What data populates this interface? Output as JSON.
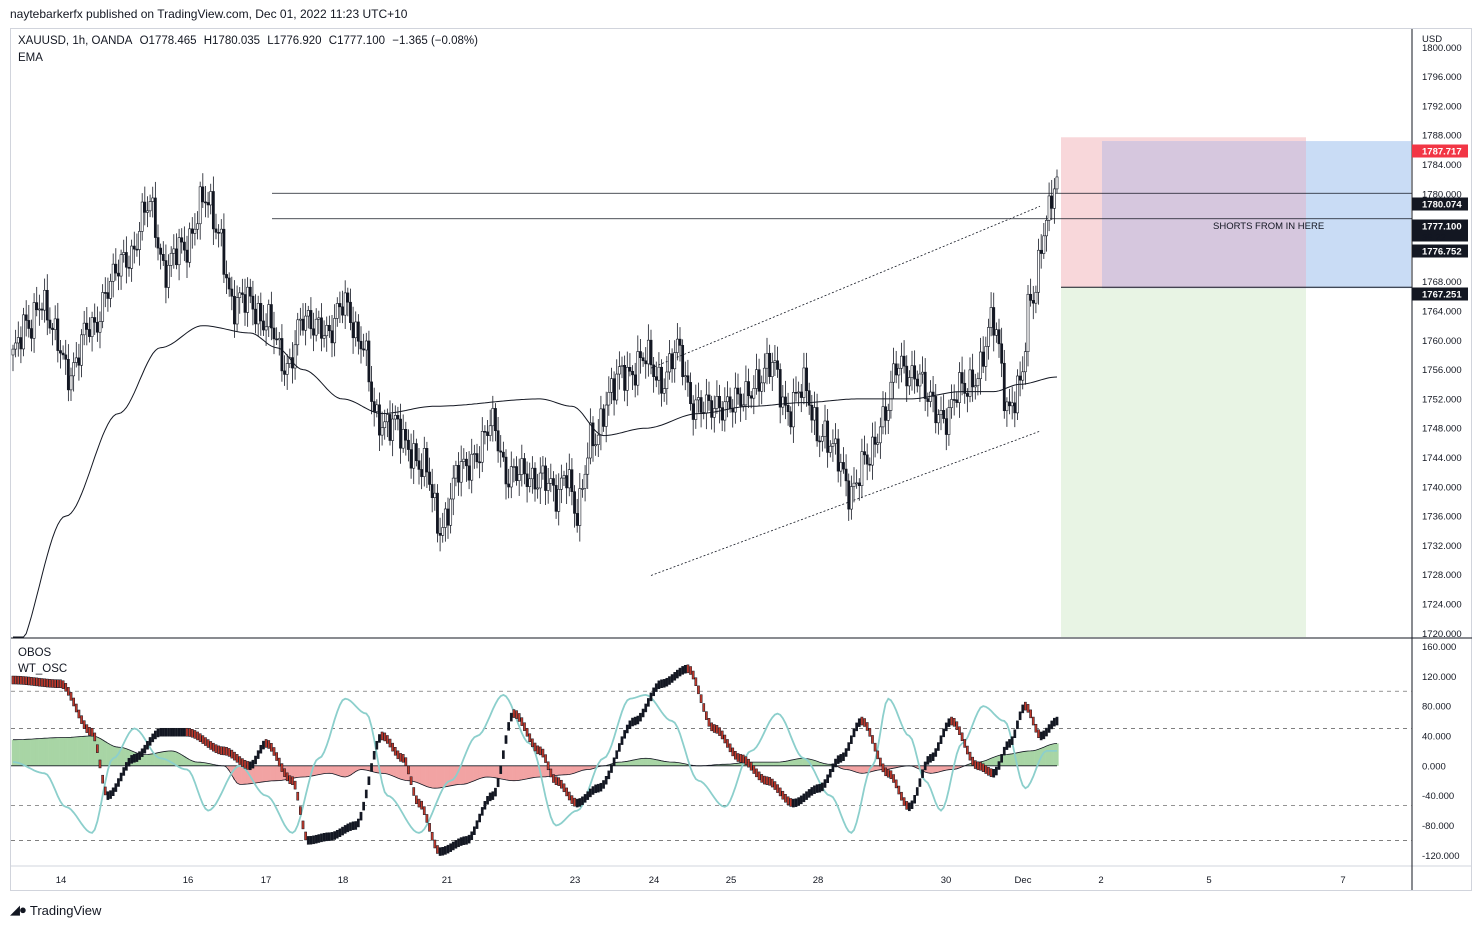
{
  "header": {
    "publisher_text": "naytebarkerfx published on TradingView.com, Dec 01, 2022 11:23 UTC+10"
  },
  "legend": {
    "symbol": "XAUUSD, 1h, OANDA",
    "open": "O1778.465",
    "high": "H1780.035",
    "low": "L1776.920",
    "close": "C1777.100",
    "change": "−1.365 (−0.08%)",
    "indicator": "EMA",
    "osc_title": "OBOS",
    "osc_name": "WT_OSC"
  },
  "footer": {
    "brand": "TradingView"
  },
  "annotation": {
    "text": "SHORTS FROM IN HERE"
  },
  "colors": {
    "candle": "#131722",
    "stop_zone": "#f8d7da",
    "profit_zone": "#e8f4e4",
    "short_box": "#c9dcf5",
    "overlap": "#d6c7de",
    "wt1": "#131722",
    "wt2": "#8ccfcc",
    "osc_green": "#a8d5a5",
    "osc_red": "#f2a3a3",
    "tag_red": "#f23645",
    "tag_black": "#131722"
  },
  "chart_data": {
    "type": "candlestick",
    "symbol": "XAUUSD",
    "timeframe": "1h",
    "x_tick_labels": [
      "14",
      "16",
      "17",
      "18",
      "21",
      "23",
      "24",
      "25",
      "28",
      "30",
      "Dec",
      "2",
      "5",
      "7"
    ],
    "y_unit_label": "USD",
    "y_ticks": [
      1800,
      1796,
      1792,
      1788,
      1784,
      1780,
      1776,
      1772,
      1768,
      1764,
      1760,
      1756,
      1752,
      1748,
      1744,
      1740,
      1736,
      1732,
      1728,
      1724,
      1720
    ],
    "ylim": [
      1719.5,
      1802.5
    ],
    "price_tags": [
      {
        "value": "1787.717",
        "color": "#f23645"
      },
      {
        "value": "1780.074",
        "color": "#131722"
      },
      {
        "value": "1777.100",
        "sub": "36:22",
        "color": "#131722"
      },
      {
        "value": "1776.752",
        "color": "#131722"
      },
      {
        "value": "1767.251",
        "color": "#131722"
      }
    ],
    "horizontal_levels": [
      1780.074,
      1776.6
    ],
    "trade_zone": {
      "entry": 1767.251,
      "stop": 1787.717,
      "box_top": 1787.2,
      "target": "below 1719.5"
    },
    "channel": {
      "upper": [
        [
          1733,
          1756.2
        ],
        [
          1776,
          1778.3
        ]
      ],
      "lower": [
        [
          1733,
          1727.9
        ],
        [
          1776,
          1747.6
        ]
      ]
    },
    "candle_anchors": [
      [
        0,
        1758
      ],
      [
        6,
        1762
      ],
      [
        10,
        1766
      ],
      [
        16,
        1760
      ],
      [
        22,
        1756
      ],
      [
        30,
        1762
      ],
      [
        36,
        1767
      ],
      [
        44,
        1772
      ],
      [
        52,
        1778
      ],
      [
        58,
        1770
      ],
      [
        64,
        1772
      ],
      [
        72,
        1779
      ],
      [
        78,
        1775
      ],
      [
        84,
        1764
      ],
      [
        90,
        1766
      ],
      [
        96,
        1762
      ],
      [
        104,
        1757
      ],
      [
        110,
        1762
      ],
      [
        116,
        1763
      ],
      [
        120,
        1760
      ],
      [
        126,
        1766
      ],
      [
        132,
        1759
      ],
      [
        138,
        1750
      ],
      [
        144,
        1748
      ],
      [
        150,
        1746
      ],
      [
        156,
        1742
      ],
      [
        162,
        1735
      ],
      [
        170,
        1742
      ],
      [
        176,
        1745
      ],
      [
        182,
        1748
      ],
      [
        188,
        1742
      ],
      [
        194,
        1741
      ],
      [
        200,
        1742
      ],
      [
        206,
        1738
      ],
      [
        210,
        1743
      ],
      [
        214,
        1736
      ],
      [
        220,
        1747
      ],
      [
        226,
        1752
      ],
      [
        232,
        1756
      ],
      [
        240,
        1757
      ],
      [
        246,
        1755
      ],
      [
        252,
        1758
      ],
      [
        258,
        1752
      ],
      [
        264,
        1750
      ],
      [
        270,
        1752
      ],
      [
        276,
        1751
      ],
      [
        282,
        1755
      ],
      [
        288,
        1756
      ],
      [
        294,
        1751
      ],
      [
        300,
        1753
      ],
      [
        306,
        1748
      ],
      [
        312,
        1744
      ],
      [
        318,
        1740
      ],
      [
        324,
        1743
      ],
      [
        330,
        1750
      ],
      [
        336,
        1756
      ],
      [
        342,
        1756
      ],
      [
        348,
        1751
      ],
      [
        354,
        1750
      ],
      [
        360,
        1753
      ],
      [
        366,
        1756
      ],
      [
        372,
        1762
      ],
      [
        378,
        1751
      ],
      [
        382,
        1753
      ],
      [
        386,
        1766
      ],
      [
        392,
        1776
      ],
      [
        396,
        1781
      ]
    ],
    "ema_anchors": [
      [
        0,
        1717
      ],
      [
        20,
        1736
      ],
      [
        40,
        1750
      ],
      [
        56,
        1759
      ],
      [
        72,
        1762
      ],
      [
        90,
        1761
      ],
      [
        100,
        1759
      ],
      [
        110,
        1756
      ],
      [
        125,
        1752
      ],
      [
        140,
        1750
      ],
      [
        160,
        1751
      ],
      [
        200,
        1752
      ],
      [
        212,
        1751
      ],
      [
        224,
        1747
      ],
      [
        240,
        1748
      ],
      [
        260,
        1750
      ],
      [
        280,
        1751
      ],
      [
        300,
        1751.5
      ],
      [
        320,
        1752
      ],
      [
        340,
        1752
      ],
      [
        360,
        1753
      ],
      [
        372,
        1753
      ],
      [
        382,
        1754
      ],
      [
        396,
        1755
      ]
    ],
    "oscillator": {
      "ylim": [
        -133,
        170
      ],
      "y_ticks": [
        160,
        120,
        80,
        40,
        0,
        -40,
        -80,
        -120
      ],
      "dashed_levels": [
        100,
        50,
        -53,
        -100
      ],
      "wt1_anchors": [
        [
          0,
          115
        ],
        [
          18,
          110
        ],
        [
          30,
          45
        ],
        [
          36,
          -40
        ],
        [
          46,
          10
        ],
        [
          56,
          45
        ],
        [
          66,
          45
        ],
        [
          80,
          20
        ],
        [
          90,
          0
        ],
        [
          96,
          30
        ],
        [
          106,
          -20
        ],
        [
          112,
          -100
        ],
        [
          120,
          -95
        ],
        [
          130,
          -80
        ],
        [
          140,
          40
        ],
        [
          148,
          10
        ],
        [
          154,
          -50
        ],
        [
          162,
          -115
        ],
        [
          172,
          -100
        ],
        [
          182,
          -40
        ],
        [
          190,
          70
        ],
        [
          200,
          20
        ],
        [
          206,
          -20
        ],
        [
          214,
          -50
        ],
        [
          222,
          -30
        ],
        [
          236,
          60
        ],
        [
          246,
          110
        ],
        [
          256,
          130
        ],
        [
          266,
          50
        ],
        [
          276,
          10
        ],
        [
          286,
          -20
        ],
        [
          296,
          -50
        ],
        [
          306,
          -30
        ],
        [
          314,
          10
        ],
        [
          322,
          60
        ],
        [
          332,
          -10
        ],
        [
          340,
          -55
        ],
        [
          348,
          10
        ],
        [
          356,
          60
        ],
        [
          366,
          0
        ],
        [
          372,
          -10
        ],
        [
          378,
          30
        ],
        [
          384,
          80
        ],
        [
          390,
          40
        ],
        [
          396,
          60
        ]
      ],
      "wt2_anchors": [
        [
          0,
          5
        ],
        [
          12,
          -10
        ],
        [
          20,
          -55
        ],
        [
          30,
          -90
        ],
        [
          38,
          10
        ],
        [
          46,
          50
        ],
        [
          56,
          10
        ],
        [
          66,
          -5
        ],
        [
          74,
          -60
        ],
        [
          86,
          0
        ],
        [
          96,
          -40
        ],
        [
          106,
          -90
        ],
        [
          116,
          10
        ],
        [
          126,
          90
        ],
        [
          134,
          70
        ],
        [
          142,
          -40
        ],
        [
          154,
          -90
        ],
        [
          166,
          -20
        ],
        [
          176,
          40
        ],
        [
          186,
          95
        ],
        [
          196,
          30
        ],
        [
          206,
          -80
        ],
        [
          214,
          -60
        ],
        [
          224,
          10
        ],
        [
          234,
          90
        ],
        [
          240,
          95
        ],
        [
          250,
          60
        ],
        [
          260,
          -20
        ],
        [
          270,
          -55
        ],
        [
          280,
          20
        ],
        [
          290,
          70
        ],
        [
          300,
          10
        ],
        [
          310,
          -40
        ],
        [
          318,
          -90
        ],
        [
          326,
          0
        ],
        [
          332,
          90
        ],
        [
          340,
          40
        ],
        [
          346,
          -20
        ],
        [
          352,
          -60
        ],
        [
          360,
          30
        ],
        [
          368,
          80
        ],
        [
          376,
          60
        ],
        [
          384,
          -30
        ],
        [
          392,
          20
        ]
      ],
      "histogram_anchors": [
        [
          0,
          35
        ],
        [
          20,
          38
        ],
        [
          30,
          40
        ],
        [
          40,
          25
        ],
        [
          50,
          15
        ],
        [
          60,
          20
        ],
        [
          70,
          5
        ],
        [
          80,
          0
        ],
        [
          86,
          -25
        ],
        [
          100,
          -20
        ],
        [
          110,
          -15
        ],
        [
          120,
          -10
        ],
        [
          126,
          -15
        ],
        [
          132,
          -5
        ],
        [
          140,
          -10
        ],
        [
          150,
          -20
        ],
        [
          160,
          -30
        ],
        [
          170,
          -25
        ],
        [
          180,
          -15
        ],
        [
          190,
          -20
        ],
        [
          200,
          -15
        ],
        [
          210,
          -12
        ],
        [
          218,
          -5
        ],
        [
          224,
          0
        ],
        [
          230,
          5
        ],
        [
          240,
          10
        ],
        [
          250,
          5
        ],
        [
          260,
          0
        ],
        [
          270,
          2
        ],
        [
          280,
          5
        ],
        [
          290,
          5
        ],
        [
          300,
          10
        ],
        [
          310,
          2
        ],
        [
          316,
          -5
        ],
        [
          322,
          -10
        ],
        [
          330,
          -5
        ],
        [
          340,
          0
        ],
        [
          348,
          -10
        ],
        [
          356,
          -5
        ],
        [
          366,
          5
        ],
        [
          376,
          15
        ],
        [
          386,
          20
        ],
        [
          396,
          30
        ]
      ]
    }
  }
}
